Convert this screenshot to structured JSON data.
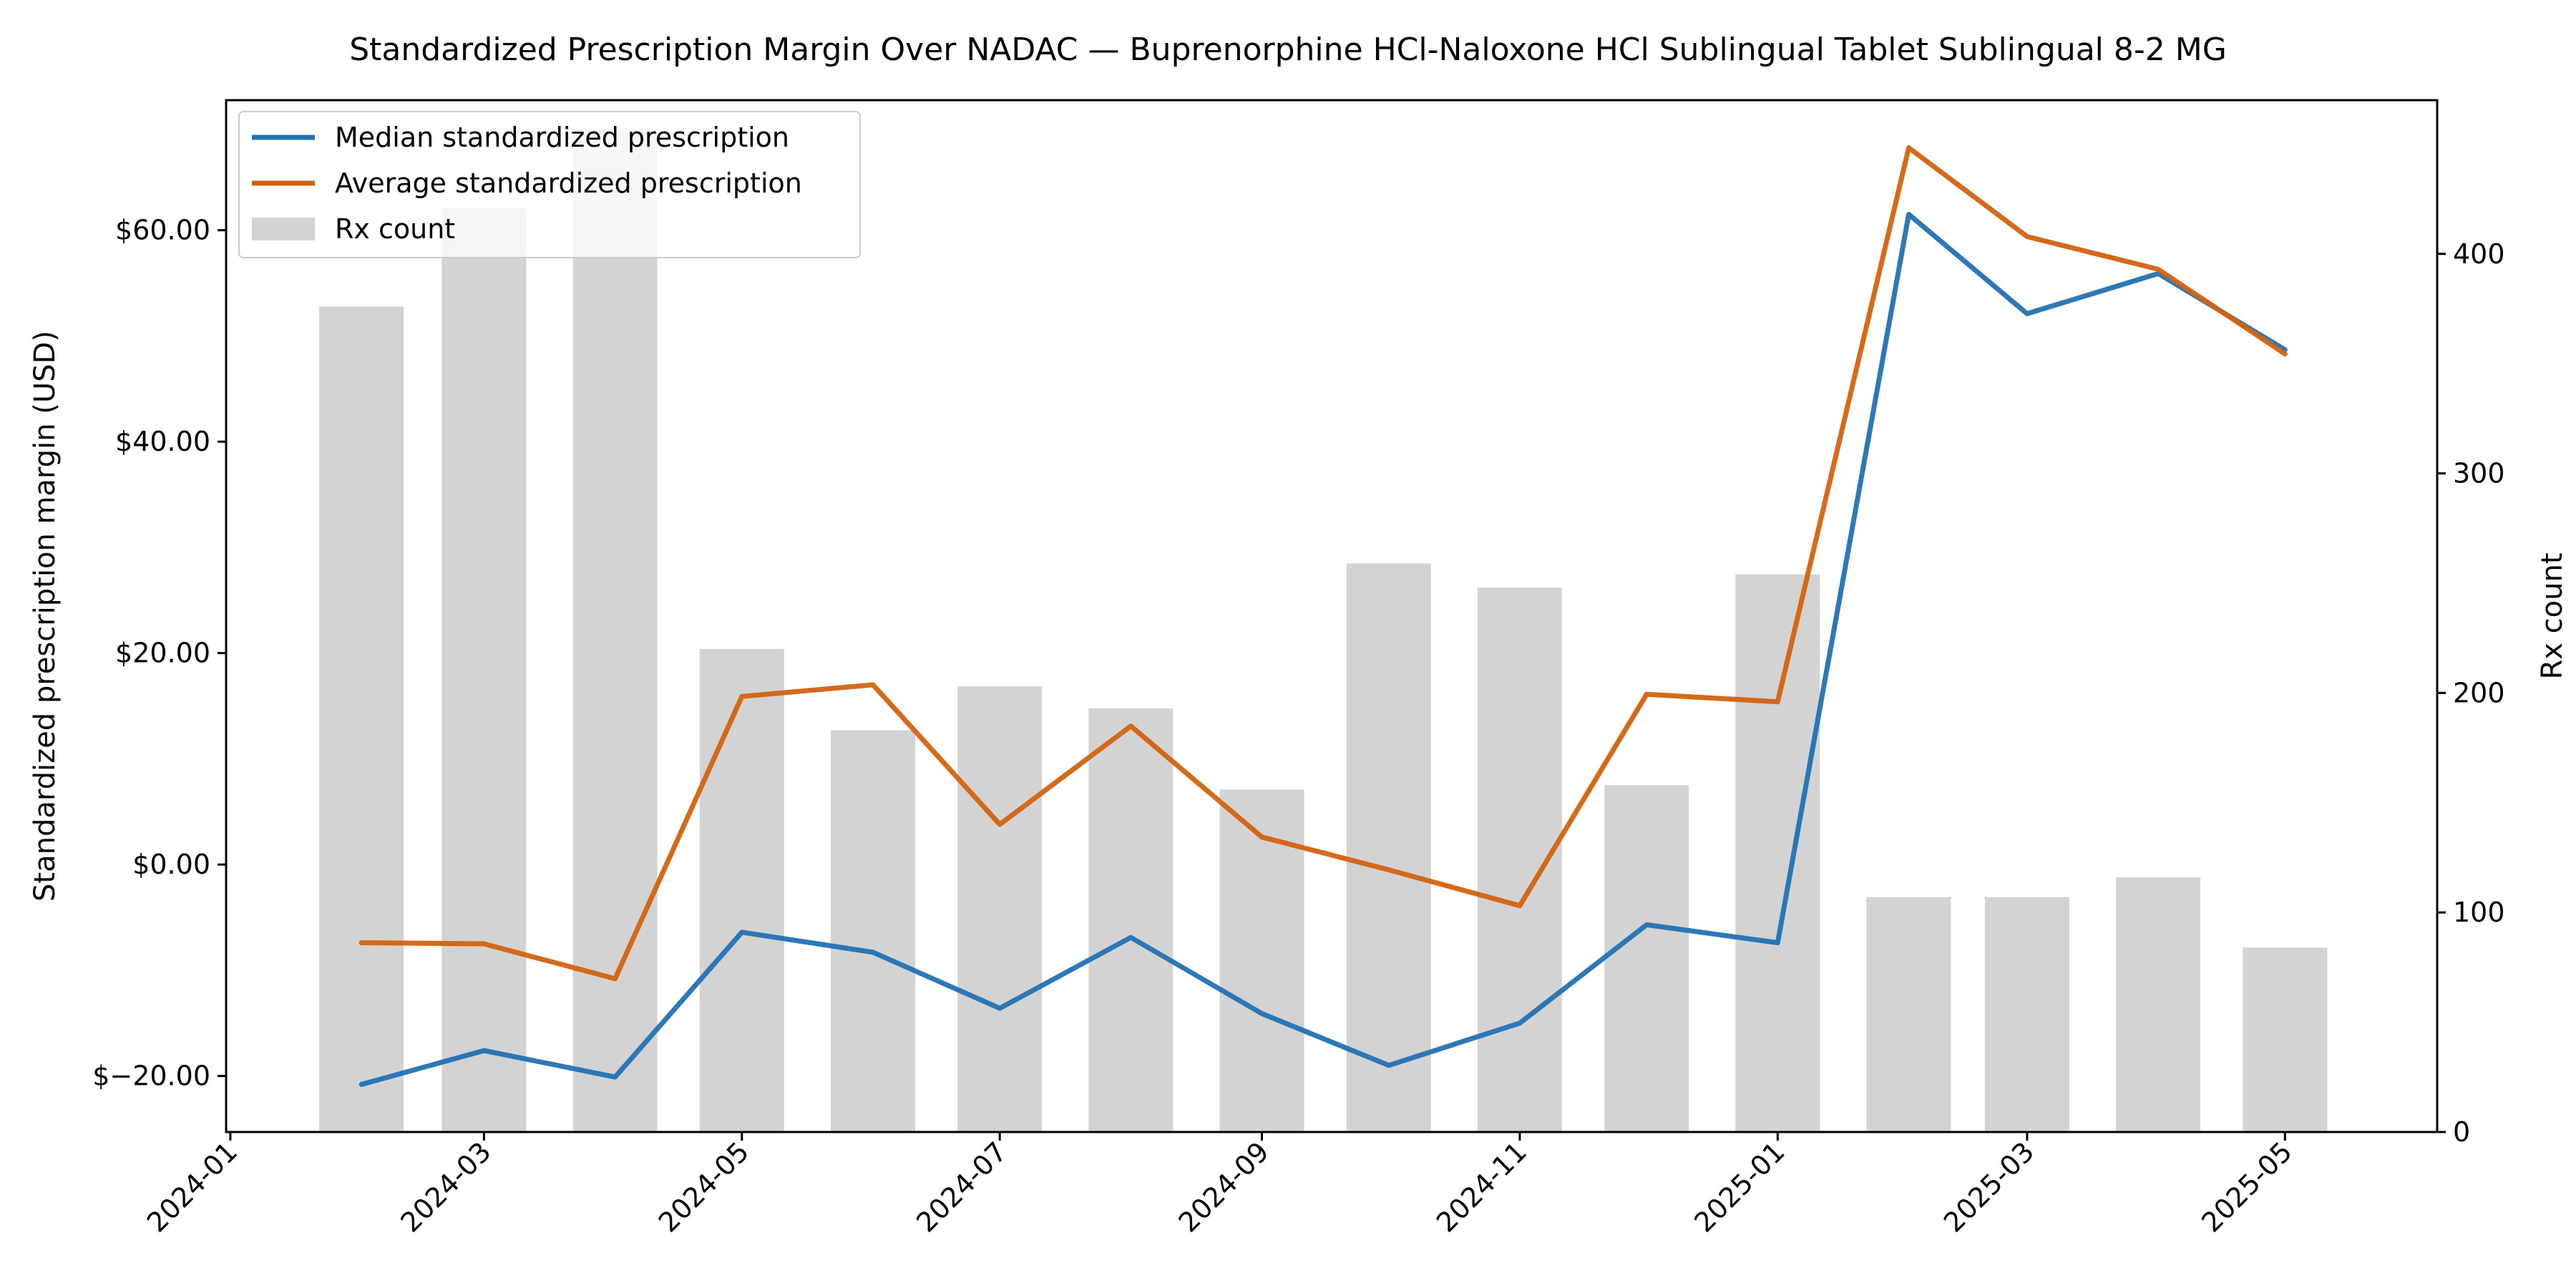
{
  "chart_data": {
    "type": "line",
    "title": "Standardized Prescription Margin Over NADAC — Buprenorphine HCl-Naloxone HCl Sublingual Tablet Sublingual 8-2 MG",
    "ylabel_left": "Standardized prescription margin (USD)",
    "ylabel_right": "Rx count",
    "xlim": [
      "2023-12-31",
      "2025-06-06"
    ],
    "ylim_left": [
      -25.3,
      72.3
    ],
    "ylim_right": [
      0,
      470
    ],
    "x_ticks": [
      "2024-01",
      "2024-03",
      "2024-05",
      "2024-07",
      "2024-09",
      "2024-11",
      "2025-01",
      "2025-03",
      "2025-05"
    ],
    "y_ticks_left": [
      -20,
      0,
      20,
      40,
      60
    ],
    "y_tick_labels_left": [
      "$−20.00",
      "$0.00",
      "$20.00",
      "$40.00",
      "$60.00"
    ],
    "y_ticks_right": [
      0,
      100,
      200,
      300,
      400
    ],
    "y_tick_labels_right": [
      "0",
      "100",
      "200",
      "300",
      "400"
    ],
    "x": [
      "2024-02-01",
      "2024-03-01",
      "2024-04-01",
      "2024-05-01",
      "2024-06-01",
      "2024-07-01",
      "2024-08-01",
      "2024-09-01",
      "2024-10-01",
      "2024-11-01",
      "2024-12-01",
      "2025-01-01",
      "2025-02-01",
      "2025-03-01",
      "2025-04-01",
      "2025-05-01"
    ],
    "series": [
      {
        "name": "Median standardized prescription",
        "kind": "line",
        "axis": "left",
        "color": "#2271b3",
        "values": [
          -20.8,
          -17.6,
          -20.1,
          -6.4,
          -8.3,
          -13.6,
          -6.9,
          -14.1,
          -19.0,
          -15.0,
          -5.7,
          -7.4,
          61.5,
          52.1,
          55.9,
          48.7
        ]
      },
      {
        "name": "Average standardized prescription",
        "kind": "line",
        "axis": "left",
        "color": "#d3620f",
        "values": [
          -7.4,
          -7.5,
          -10.8,
          15.9,
          17.0,
          3.8,
          13.1,
          2.6,
          -0.5,
          -3.9,
          16.1,
          15.4,
          67.8,
          59.4,
          56.3,
          48.3
        ]
      },
      {
        "name": "Rx count",
        "kind": "bar",
        "axis": "right",
        "color": "#d3d3d3",
        "values": [
          376,
          421,
          457,
          220,
          183,
          203,
          193,
          156,
          259,
          248,
          158,
          254,
          107,
          107,
          116,
          84
        ]
      }
    ],
    "legend_position": "top-left",
    "grid": false
  }
}
